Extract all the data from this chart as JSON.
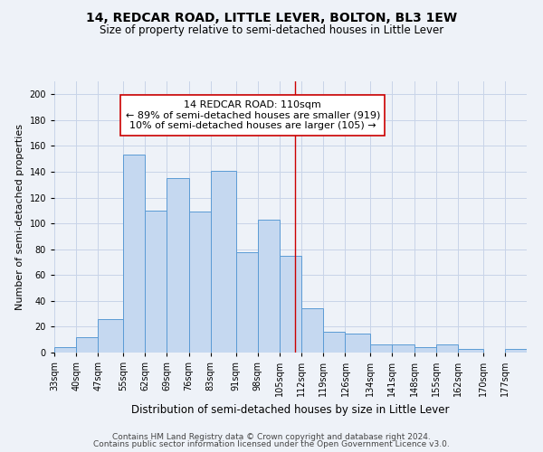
{
  "title": "14, REDCAR ROAD, LITTLE LEVER, BOLTON, BL3 1EW",
  "subtitle": "Size of property relative to semi-detached houses in Little Lever",
  "xlabel": "Distribution of semi-detached houses by size in Little Lever",
  "ylabel": "Number of semi-detached properties",
  "bin_labels": [
    "33sqm",
    "40sqm",
    "47sqm",
    "55sqm",
    "62sqm",
    "69sqm",
    "76sqm",
    "83sqm",
    "91sqm",
    "98sqm",
    "105sqm",
    "112sqm",
    "119sqm",
    "126sqm",
    "134sqm",
    "141sqm",
    "148sqm",
    "155sqm",
    "162sqm",
    "170sqm",
    "177sqm"
  ],
  "bin_edges": [
    33,
    40,
    47,
    55,
    62,
    69,
    76,
    83,
    91,
    98,
    105,
    112,
    119,
    126,
    134,
    141,
    148,
    155,
    162,
    170,
    177,
    184
  ],
  "counts": [
    4,
    12,
    26,
    153,
    110,
    135,
    109,
    141,
    78,
    103,
    75,
    34,
    16,
    15,
    6,
    6,
    4,
    6,
    3,
    0,
    3
  ],
  "bar_color": "#c5d8f0",
  "bar_edge_color": "#5b9bd5",
  "property_size": 110,
  "vline_color": "#cc0000",
  "annotation_line1": "14 REDCAR ROAD: 110sqm",
  "annotation_line2": "← 89% of semi-detached houses are smaller (919)",
  "annotation_line3": "10% of semi-detached houses are larger (105) →",
  "annotation_box_edge": "#cc0000",
  "ylim": [
    0,
    210
  ],
  "yticks": [
    0,
    20,
    40,
    60,
    80,
    100,
    120,
    140,
    160,
    180,
    200
  ],
  "grid_color": "#c8d4e8",
  "background_color": "#eef2f8",
  "footer_line1": "Contains HM Land Registry data © Crown copyright and database right 2024.",
  "footer_line2": "Contains public sector information licensed under the Open Government Licence v3.0.",
  "title_fontsize": 10,
  "subtitle_fontsize": 8.5,
  "xlabel_fontsize": 8.5,
  "ylabel_fontsize": 8,
  "tick_fontsize": 7,
  "annotation_fontsize": 8,
  "footer_fontsize": 6.5
}
